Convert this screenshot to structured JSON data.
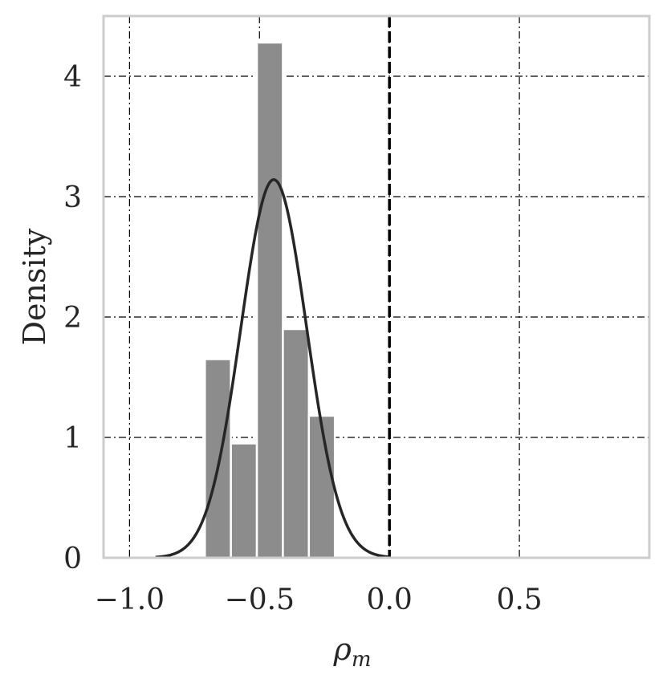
{
  "chart_data": {
    "type": "bar",
    "xlabel": "ρm",
    "xlabel_main": "ρ",
    "xlabel_sub": "m",
    "ylabel": "Density",
    "xlim": [
      -1.1,
      1.0
    ],
    "ylim": [
      0,
      4.5
    ],
    "xticks": [
      -1.0,
      -0.5,
      0.0,
      0.5
    ],
    "xtick_labels": [
      "−1.0",
      "−0.5",
      "0.0",
      "0.5"
    ],
    "yticks": [
      0,
      1,
      2,
      3,
      4
    ],
    "ytick_labels": [
      "0",
      "1",
      "2",
      "3",
      "4"
    ],
    "grid": true,
    "bin_edges": [
      -0.71,
      -0.61,
      -0.51,
      -0.41,
      -0.31,
      -0.21
    ],
    "values": [
      1.65,
      0.95,
      4.28,
      1.9,
      1.18
    ],
    "kde": {
      "mean": -0.445,
      "std": 0.127,
      "xrange": [
        -0.9,
        0.0
      ]
    },
    "reference_line_x": 0.0,
    "bar_color": "#8c8c8c",
    "line_color": "#262626",
    "grid_color": "#000000",
    "frame_color": "#cccccc"
  }
}
